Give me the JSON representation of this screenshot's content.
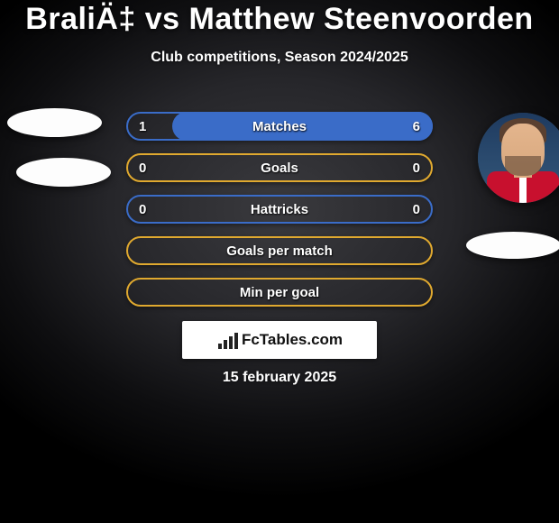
{
  "title": "BraliÄ‡ vs Matthew Steenvoorden",
  "subtitle": "Club competitions, Season 2024/2025",
  "date": "15 february 2025",
  "logo_text_lead": "Fc",
  "logo_text_rest": "Tables.com",
  "colors": {
    "blue_border": "#3a6cc8",
    "blue_fill": "#3a6cc8",
    "yellow_border": "#e0a92f",
    "yellow_fill": "#e0a92f",
    "white": "#ffffff"
  },
  "rows": [
    {
      "label": "Matches",
      "left": "1",
      "right": "6",
      "border_color": "#3a6cc8",
      "fill_side": "right",
      "fill_pct": 86,
      "fill_color": "#3a6cc8"
    },
    {
      "label": "Goals",
      "left": "0",
      "right": "0",
      "border_color": "#e0a92f",
      "fill_side": "none",
      "fill_pct": 0,
      "fill_color": "#e0a92f"
    },
    {
      "label": "Hattricks",
      "left": "0",
      "right": "0",
      "border_color": "#3a6cc8",
      "fill_side": "none",
      "fill_pct": 0,
      "fill_color": "#3a6cc8"
    },
    {
      "label": "Goals per match",
      "left": "",
      "right": "",
      "border_color": "#e0a92f",
      "fill_side": "none",
      "fill_pct": 0,
      "fill_color": "#e0a92f"
    },
    {
      "label": "Min per goal",
      "left": "",
      "right": "",
      "border_color": "#e0a92f",
      "fill_side": "none",
      "fill_pct": 0,
      "fill_color": "#e0a92f"
    }
  ]
}
